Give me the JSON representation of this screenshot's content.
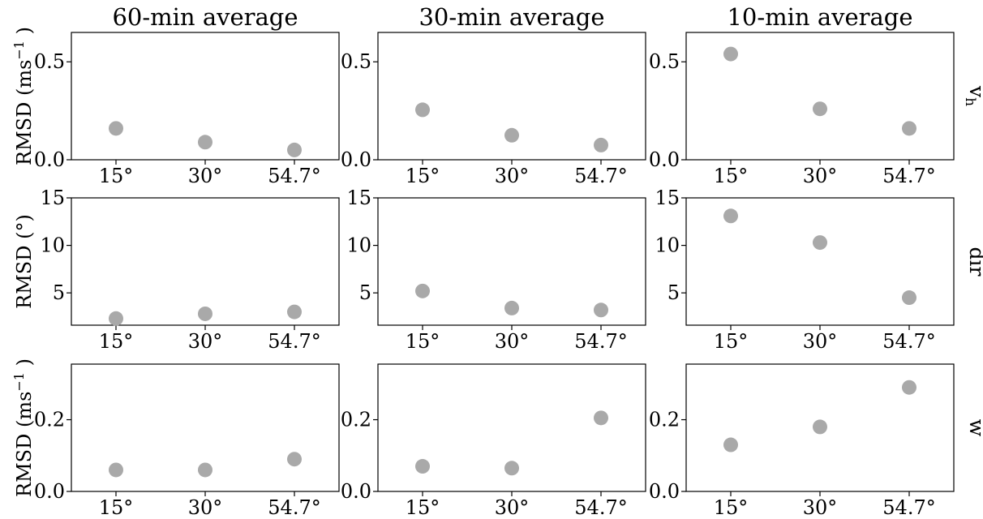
{
  "chart_data": {
    "type": "scatter",
    "columns": [
      "60-min average",
      "30-min average",
      "10-min average"
    ],
    "rows": [
      {
        "label": "v",
        "label_subscript": "h",
        "ylabel": "RMSD (ms",
        "ylabel_sup": "−1",
        "ylabel_end": ")",
        "ylim": [
          0,
          0.65
        ],
        "yticks": [
          0,
          0.5
        ],
        "ytick_labels": [
          "0.0",
          "0.5"
        ]
      },
      {
        "label": "dir",
        "ylabel": "RMSD (°)",
        "ylim": [
          1.6,
          15
        ],
        "yticks": [
          5,
          10,
          15
        ],
        "ytick_labels": [
          "5",
          "10",
          "15"
        ]
      },
      {
        "label": "w",
        "ylabel": "RMSD (ms",
        "ylabel_sup": "−1",
        "ylabel_end": ")",
        "ylim": [
          0,
          0.355
        ],
        "yticks": [
          0,
          0.2
        ],
        "ytick_labels": [
          "0.0",
          "0.2"
        ]
      }
    ],
    "categories": [
      "15°",
      "30°",
      "54.7°"
    ],
    "xlim": [
      -0.5,
      2.5
    ],
    "values": [
      [
        [
          0.16,
          0.09,
          0.05
        ],
        [
          0.255,
          0.125,
          0.075
        ],
        [
          0.54,
          0.26,
          0.16
        ]
      ],
      [
        [
          2.3,
          2.8,
          3.0
        ],
        [
          5.2,
          3.4,
          3.2
        ],
        [
          13.1,
          10.3,
          4.5
        ]
      ],
      [
        [
          0.06,
          0.06,
          0.09
        ],
        [
          0.07,
          0.065,
          0.205
        ],
        [
          0.13,
          0.18,
          0.29
        ]
      ]
    ],
    "marker_color": "#a9a9a9",
    "grid": false
  }
}
